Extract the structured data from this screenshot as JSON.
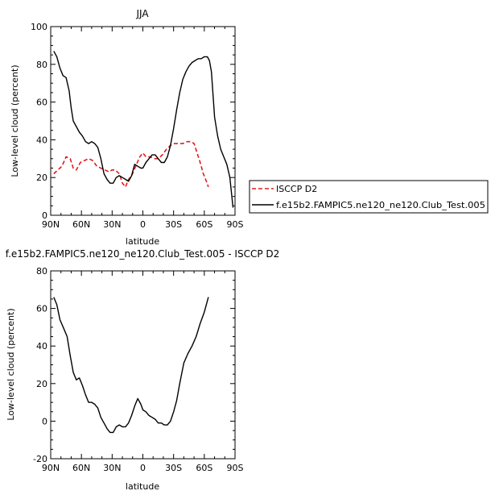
{
  "chart_data": [
    {
      "type": "line",
      "title": "JJA",
      "xlabel": "latitude",
      "ylabel": "Low-level cloud (percent)",
      "xlim": [
        90,
        -90
      ],
      "ylim": [
        0,
        100
      ],
      "xticks": [
        90,
        60,
        30,
        0,
        -30,
        -60,
        -90
      ],
      "xtick_labels": [
        "90N",
        "60N",
        "30N",
        "0",
        "30S",
        "60S",
        "90S"
      ],
      "yticks": [
        0,
        20,
        40,
        60,
        80,
        100
      ],
      "ytick_labels": [
        "0",
        "20",
        "40",
        "60",
        "80",
        "100"
      ],
      "legend_position": "right",
      "series": [
        {
          "name": "ISCCP D2",
          "color": "#e41a1c",
          "dash": "dashed",
          "x": [
            87,
            83,
            79,
            75,
            71,
            68,
            65,
            61,
            57,
            53,
            49,
            45,
            41,
            37,
            33,
            30,
            27,
            23,
            20,
            17,
            14,
            11,
            7,
            3,
            0,
            -3,
            -7,
            -11,
            -15,
            -19,
            -23,
            -27,
            -31,
            -35,
            -39,
            -43,
            -47,
            -50,
            -53,
            -56,
            -59,
            -62,
            -64
          ],
          "y": [
            22,
            24,
            26,
            31,
            30,
            25,
            24,
            28,
            29,
            30,
            29,
            26,
            25,
            24,
            23,
            24,
            24,
            22,
            17,
            15,
            19,
            21,
            26,
            31,
            33,
            31,
            31,
            30,
            30,
            32,
            35,
            37,
            38,
            38,
            38,
            39,
            39,
            38,
            33,
            28,
            22,
            18,
            15
          ]
        },
        {
          "name": "f.e15b2.FAMPIC5.ne120_ne120.Club_Test.005",
          "color": "#000000",
          "dash": "solid",
          "x": [
            87,
            84,
            81,
            78,
            75,
            72,
            70,
            68,
            65,
            62,
            59,
            56,
            53,
            50,
            47,
            44,
            41,
            38,
            35,
            32,
            29,
            26,
            23,
            20,
            17,
            14,
            11,
            8,
            5,
            2,
            0,
            -3,
            -6,
            -9,
            -12,
            -15,
            -18,
            -21,
            -24,
            -27,
            -30,
            -33,
            -36,
            -39,
            -42,
            -45,
            -48,
            -51,
            -54,
            -57,
            -60,
            -63,
            -65,
            -67,
            -70,
            -73,
            -76,
            -79,
            -82,
            -85,
            -88
          ],
          "y": [
            87,
            84,
            78,
            74,
            73,
            66,
            57,
            50,
            47,
            44,
            42,
            39,
            38,
            39,
            38,
            36,
            30,
            22,
            19,
            17,
            17,
            20,
            21,
            20,
            19,
            18,
            21,
            27,
            26,
            25,
            25,
            28,
            30,
            32,
            32,
            30,
            28,
            28,
            31,
            37,
            46,
            56,
            65,
            72,
            76,
            79,
            81,
            82,
            83,
            83,
            84,
            84,
            82,
            76,
            52,
            42,
            35,
            31,
            27,
            20,
            4
          ]
        }
      ]
    },
    {
      "type": "line",
      "title": "f.e15b2.FAMPIC5.ne120_ne120.Club_Test.005 - ISCCP D2",
      "xlabel": "latitude",
      "ylabel": "Low-level cloud (percent)",
      "xlim": [
        90,
        -90
      ],
      "ylim": [
        -20,
        80
      ],
      "xticks": [
        90,
        60,
        30,
        0,
        -30,
        -60,
        -90
      ],
      "xtick_labels": [
        "90N",
        "60N",
        "30N",
        "0",
        "30S",
        "60S",
        "90S"
      ],
      "yticks": [
        -20,
        0,
        20,
        40,
        60,
        80
      ],
      "ytick_labels": [
        "-20",
        "0",
        "20",
        "40",
        "60",
        "80"
      ],
      "series": [
        {
          "name": "",
          "color": "#000000",
          "dash": "solid",
          "x": [
            87,
            84,
            81,
            77,
            74,
            71,
            68,
            65,
            62,
            59,
            56,
            53,
            50,
            47,
            44,
            41,
            38,
            35,
            32,
            29,
            26,
            23,
            20,
            17,
            14,
            11,
            8,
            5,
            2,
            0,
            -3,
            -6,
            -9,
            -12,
            -15,
            -18,
            -21,
            -24,
            -27,
            -30,
            -33,
            -36,
            -40,
            -44,
            -48,
            -52,
            -56,
            -60,
            -64
          ],
          "y": [
            66,
            62,
            54,
            49,
            45,
            35,
            26,
            22,
            23,
            19,
            14,
            10,
            10,
            9,
            7,
            2,
            -1,
            -4,
            -6,
            -6,
            -3,
            -2,
            -3,
            -3,
            -1,
            3,
            8,
            12,
            9,
            6,
            5,
            3,
            2,
            1,
            -1,
            -1,
            -2,
            -2,
            0,
            5,
            11,
            20,
            31,
            36,
            40,
            45,
            52,
            58,
            66
          ]
        }
      ]
    }
  ]
}
